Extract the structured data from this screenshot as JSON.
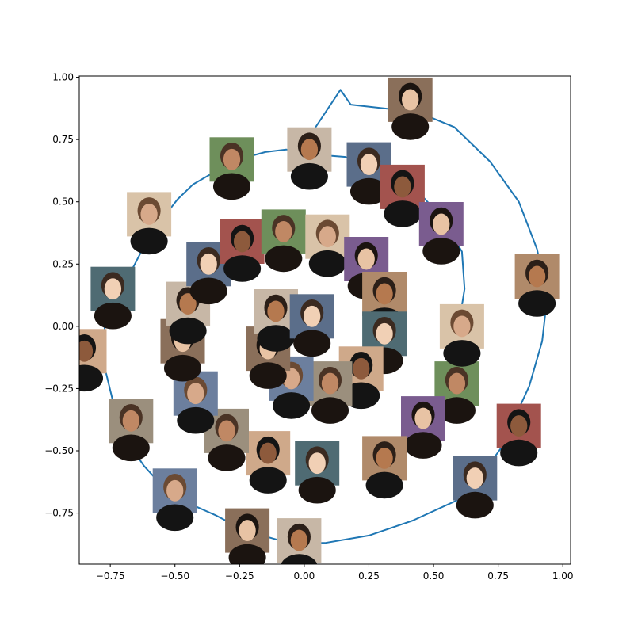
{
  "chart_data": {
    "type": "scatter",
    "title": "",
    "xlabel": "",
    "ylabel": "",
    "xlim": [
      -0.87,
      1.03
    ],
    "ylim": [
      -0.955,
      1.005
    ],
    "grid": false,
    "legend": "none",
    "line_color": "#1f77b4",
    "x_ticks": [
      -0.75,
      -0.5,
      -0.25,
      0.0,
      0.25,
      0.5,
      0.75,
      1.0
    ],
    "x_tick_labels": [
      "−0.75",
      "−0.50",
      "−0.25",
      "0.00",
      "0.25",
      "0.50",
      "0.75",
      "1.00"
    ],
    "y_ticks": [
      -0.75,
      -0.5,
      -0.25,
      0.0,
      0.25,
      0.5,
      0.75,
      1.0
    ],
    "y_tick_labels": [
      "−0.75",
      "−0.50",
      "−0.25",
      "0.00",
      "0.25",
      "0.50",
      "0.75",
      "1.00"
    ],
    "curve": {
      "x": [
        -0.01,
        -0.02,
        0.14,
        0.18,
        0.44,
        0.58,
        0.72,
        0.83,
        0.9,
        0.94,
        0.92,
        0.87,
        0.76,
        0.63,
        0.42,
        0.25,
        0.08,
        -0.06,
        -0.23,
        -0.34,
        -0.47,
        -0.55,
        -0.62,
        -0.68,
        -0.74,
        -0.78,
        -0.77,
        -0.74,
        -0.66,
        -0.59,
        -0.55,
        -0.49,
        -0.43,
        -0.33,
        -0.22,
        -0.15,
        -0.07,
        0.04,
        0.16,
        0.29,
        0.36,
        0.45,
        0.53,
        0.61,
        0.62,
        0.6,
        0.58,
        0.55
      ],
      "y": [
        0.71,
        0.7,
        0.95,
        0.89,
        0.86,
        0.8,
        0.66,
        0.5,
        0.31,
        0.12,
        -0.06,
        -0.24,
        -0.49,
        -0.68,
        -0.78,
        -0.84,
        -0.87,
        -0.87,
        -0.82,
        -0.76,
        -0.7,
        -0.64,
        -0.56,
        -0.47,
        -0.3,
        -0.13,
        0.02,
        0.12,
        0.24,
        0.38,
        0.43,
        0.51,
        0.57,
        0.63,
        0.68,
        0.7,
        0.71,
        0.69,
        0.68,
        0.6,
        0.58,
        0.53,
        0.44,
        0.3,
        0.15,
        0.02,
        -0.06,
        -0.12
      ]
    },
    "images": [
      {
        "x": 0.41,
        "y": 0.91,
        "name": "face-headphones-phone"
      },
      {
        "x": 0.02,
        "y": 0.71,
        "name": "face-headphones-purple"
      },
      {
        "x": 0.25,
        "y": 0.65,
        "name": "face-black-mask"
      },
      {
        "x": 0.38,
        "y": 0.56,
        "name": "face-long-hair-dark"
      },
      {
        "x": -0.28,
        "y": 0.67,
        "name": "face-long-hair-selfie"
      },
      {
        "x": -0.6,
        "y": 0.45,
        "name": "face-black-cap"
      },
      {
        "x": 0.53,
        "y": 0.41,
        "name": "face-red-headphones"
      },
      {
        "x": 0.9,
        "y": 0.2,
        "name": "face-glasses-blue-bg"
      },
      {
        "x": -0.74,
        "y": 0.15,
        "name": "face-glasses-dark"
      },
      {
        "x": -0.85,
        "y": -0.1,
        "name": "face-headphones-white"
      },
      {
        "x": -0.67,
        "y": -0.38,
        "name": "face-glasses-smile"
      },
      {
        "x": -0.5,
        "y": -0.66,
        "name": "face-green-headphones"
      },
      {
        "x": -0.22,
        "y": -0.82,
        "name": "face-smile-bangs"
      },
      {
        "x": -0.02,
        "y": -0.86,
        "name": "face-frown"
      },
      {
        "x": 0.66,
        "y": -0.61,
        "name": "face-looking-down"
      },
      {
        "x": 0.83,
        "y": -0.4,
        "name": "face-bowl-cut"
      },
      {
        "x": 0.59,
        "y": -0.23,
        "name": "face-glasses-nervous"
      },
      {
        "x": 0.61,
        "y": 0.0,
        "name": "face-white-headphones"
      },
      {
        "x": 0.46,
        "y": -0.37,
        "name": "face-long-hair-side"
      },
      {
        "x": 0.31,
        "y": -0.53,
        "name": "face-screaming"
      },
      {
        "x": 0.05,
        "y": -0.55,
        "name": "face-bangs-green-bg"
      },
      {
        "x": -0.14,
        "y": -0.51,
        "name": "face-bob-hair"
      },
      {
        "x": -0.3,
        "y": -0.42,
        "name": "face-glasses-blue"
      },
      {
        "x": -0.42,
        "y": -0.27,
        "name": "face-dark-hair-curly"
      },
      {
        "x": -0.47,
        "y": -0.06,
        "name": "face-beard-car"
      },
      {
        "x": -0.45,
        "y": 0.09,
        "name": "face-red-glasses"
      },
      {
        "x": -0.37,
        "y": 0.25,
        "name": "face-purple-hair"
      },
      {
        "x": -0.24,
        "y": 0.34,
        "name": "face-headphones-smile"
      },
      {
        "x": -0.08,
        "y": 0.38,
        "name": "face-curly-laugh"
      },
      {
        "x": 0.09,
        "y": 0.36,
        "name": "face-selfie-outdoor"
      },
      {
        "x": 0.24,
        "y": 0.27,
        "name": "face-cap-smirk"
      },
      {
        "x": 0.31,
        "y": 0.13,
        "name": "face-beanie-pink"
      },
      {
        "x": 0.31,
        "y": -0.03,
        "name": "face-glasses-tilted"
      },
      {
        "x": 0.22,
        "y": -0.17,
        "name": "face-blond-man"
      },
      {
        "x": 0.1,
        "y": -0.23,
        "name": "face-dark-hair-hand"
      },
      {
        "x": -0.05,
        "y": -0.21,
        "name": "face-hand-on-chin"
      },
      {
        "x": -0.14,
        "y": -0.09,
        "name": "face-white-hood"
      },
      {
        "x": -0.11,
        "y": 0.06,
        "name": "face-gray-hair-laugh"
      },
      {
        "x": 0.03,
        "y": 0.04,
        "name": "face-headphones-braids"
      }
    ]
  }
}
